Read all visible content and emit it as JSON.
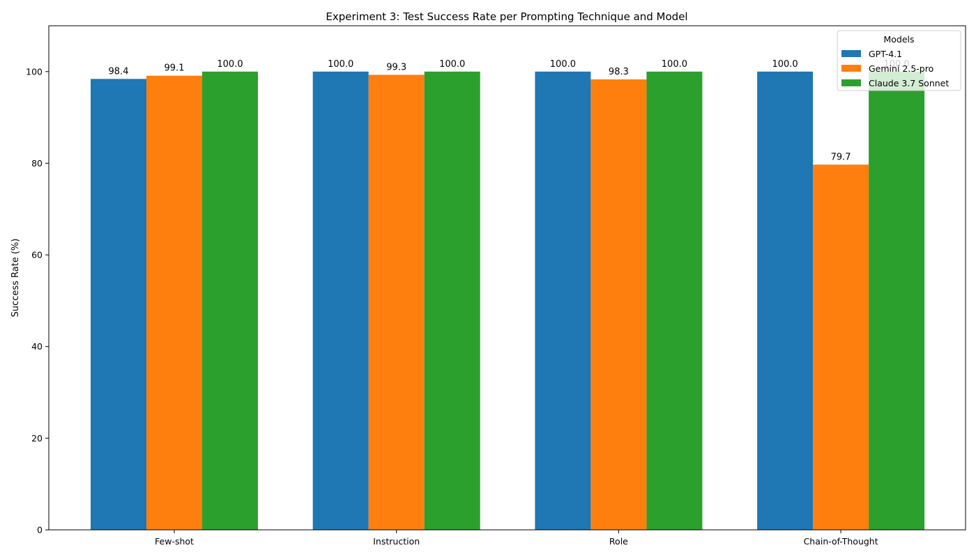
{
  "chart_data": {
    "type": "bar",
    "title": "Experiment 3: Test Success Rate per Prompting Technique and Model",
    "xlabel": "",
    "ylabel": "Success Rate (%)",
    "ylim": [
      0,
      110
    ],
    "yticks": [
      0,
      20,
      40,
      60,
      80,
      100
    ],
    "grid": false,
    "categories": [
      "Few-shot",
      "Instruction",
      "Role",
      "Chain-of-Thought"
    ],
    "series": [
      {
        "name": "GPT-4.1",
        "color": "#1f77b4",
        "values": [
          98.4,
          100.0,
          100.0,
          100.0
        ]
      },
      {
        "name": "Gemini 2.5-pro",
        "color": "#ff7f0e",
        "values": [
          99.1,
          99.3,
          98.3,
          79.7
        ]
      },
      {
        "name": "Claude 3.7 Sonnet",
        "color": "#2ca02c",
        "values": [
          100.0,
          100.0,
          100.0,
          100.0
        ]
      }
    ],
    "legend": {
      "title": "Models",
      "placement": "top-right"
    }
  }
}
